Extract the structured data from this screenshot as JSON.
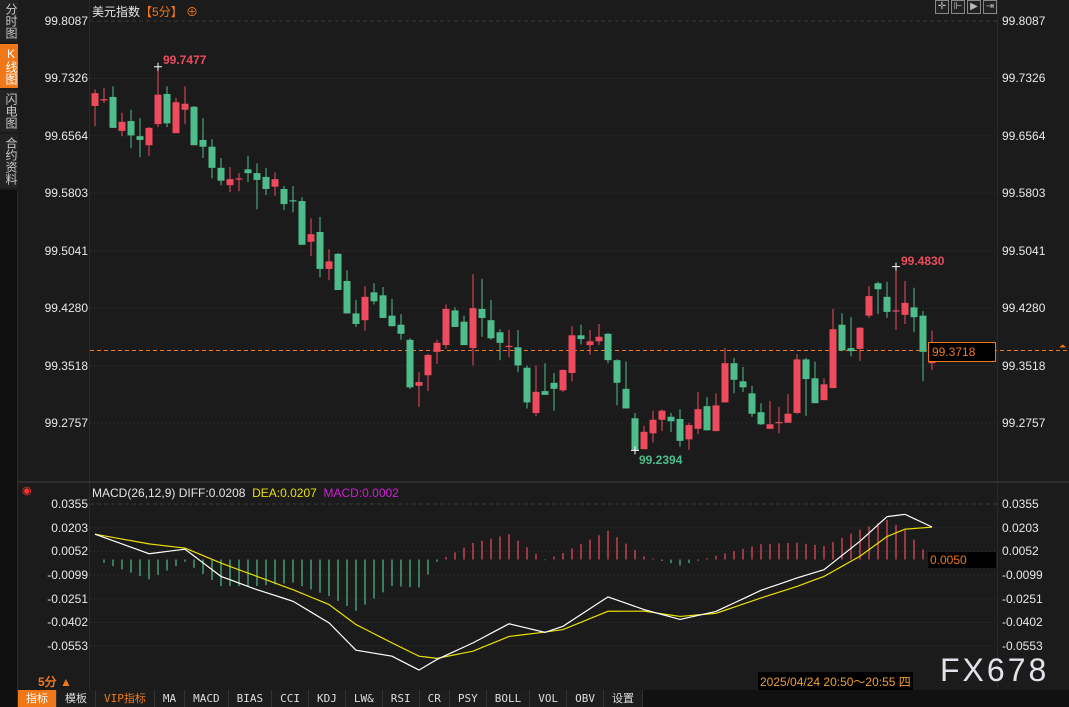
{
  "sidebar": {
    "items": [
      {
        "label": "分时图",
        "active": false
      },
      {
        "label": "K线图",
        "active": true
      },
      {
        "label": "闪电图",
        "active": false
      },
      {
        "label": "合约资料",
        "active": false
      }
    ]
  },
  "header": {
    "title": "美元指数",
    "period": "【5分】",
    "add_icon": "circle-plus-icon"
  },
  "toolbar_icons": [
    "crosshair-icon",
    "zoom-range-icon",
    "play-forward-icon",
    "move-right-icon"
  ],
  "colors": {
    "up": "#ee4b5e",
    "down": "#4fbc8b",
    "diff": "#ffffff",
    "dea": "#e8e000",
    "macd": "#d020d0",
    "accent": "#f07818"
  },
  "price_axis": {
    "labels": [
      "99.8087",
      "99.7326",
      "99.6564",
      "99.5803",
      "99.5041",
      "99.4280",
      "99.3518",
      "99.2757"
    ],
    "max": 99.8087,
    "min": 99.2757,
    "current": "99.3718"
  },
  "annotations": {
    "high": "99.7477",
    "low": "99.2394",
    "recent_high": "99.4830"
  },
  "candles": [
    [
      99.696,
      99.718,
      99.669,
      99.713
    ],
    [
      99.704,
      99.72,
      99.7,
      99.705
    ],
    [
      99.708,
      99.722,
      99.667,
      99.667
    ],
    [
      99.663,
      99.687,
      99.656,
      99.675
    ],
    [
      99.676,
      99.691,
      99.64,
      99.657
    ],
    [
      99.656,
      99.68,
      99.628,
      99.651
    ],
    [
      99.644,
      99.668,
      99.63,
      99.667
    ],
    [
      99.672,
      99.748,
      99.668,
      99.711
    ],
    [
      99.712,
      99.722,
      99.668,
      99.673
    ],
    [
      99.66,
      99.707,
      99.66,
      99.701
    ],
    [
      99.691,
      99.722,
      99.672,
      99.699
    ],
    [
      99.695,
      99.696,
      99.644,
      99.644
    ],
    [
      99.651,
      99.68,
      99.627,
      99.642
    ],
    [
      99.642,
      99.652,
      99.6,
      99.614
    ],
    [
      99.614,
      99.627,
      99.591,
      99.597
    ],
    [
      99.591,
      99.615,
      99.582,
      99.599
    ],
    [
      99.599,
      99.607,
      99.583,
      99.6
    ],
    [
      99.612,
      99.63,
      99.595,
      99.607
    ],
    [
      99.607,
      99.62,
      99.559,
      99.598
    ],
    [
      99.602,
      99.614,
      99.578,
      99.586
    ],
    [
      99.589,
      99.608,
      99.577,
      99.599
    ],
    [
      99.586,
      99.59,
      99.558,
      99.566
    ],
    [
      99.571,
      99.59,
      99.555,
      99.57
    ],
    [
      99.57,
      99.575,
      99.512,
      99.512
    ],
    [
      99.516,
      99.547,
      99.497,
      99.526
    ],
    [
      99.529,
      99.549,
      99.469,
      99.48
    ],
    [
      99.48,
      99.506,
      99.465,
      99.49
    ],
    [
      99.5,
      99.501,
      99.452,
      99.452
    ],
    [
      99.464,
      99.478,
      99.421,
      99.421
    ],
    [
      99.421,
      99.439,
      99.403,
      99.407
    ],
    [
      99.412,
      99.457,
      99.398,
      99.443
    ],
    [
      99.449,
      99.461,
      99.433,
      99.437
    ],
    [
      99.445,
      99.456,
      99.415,
      99.415
    ],
    [
      99.418,
      99.44,
      99.404,
      99.404
    ],
    [
      99.406,
      99.42,
      99.386,
      99.394
    ],
    [
      99.386,
      99.388,
      99.321,
      99.323
    ],
    [
      99.325,
      99.343,
      99.297,
      99.33
    ],
    [
      99.339,
      99.367,
      99.318,
      99.366
    ],
    [
      99.37,
      99.386,
      99.354,
      99.382
    ],
    [
      99.379,
      99.433,
      99.374,
      99.427
    ],
    [
      99.425,
      99.429,
      99.403,
      99.403
    ],
    [
      99.41,
      99.418,
      99.379,
      99.379
    ],
    [
      99.375,
      99.473,
      99.352,
      99.428
    ],
    [
      99.427,
      99.467,
      99.39,
      99.415
    ],
    [
      99.412,
      99.439,
      99.386,
      99.388
    ],
    [
      99.396,
      99.4,
      99.359,
      99.382
    ],
    [
      99.378,
      99.399,
      99.363,
      99.378
    ],
    [
      99.376,
      99.399,
      99.343,
      99.352
    ],
    [
      99.349,
      99.352,
      99.295,
      99.303
    ],
    [
      99.289,
      99.352,
      99.285,
      99.317
    ],
    [
      99.318,
      99.355,
      99.313,
      99.313
    ],
    [
      99.329,
      99.342,
      99.292,
      99.321
    ],
    [
      99.319,
      99.347,
      99.317,
      99.346
    ],
    [
      99.342,
      99.404,
      99.331,
      99.392
    ],
    [
      99.392,
      99.406,
      99.38,
      99.387
    ],
    [
      99.379,
      99.399,
      99.366,
      99.384
    ],
    [
      99.384,
      99.407,
      99.379,
      99.39
    ],
    [
      99.394,
      99.395,
      99.355,
      99.359
    ],
    [
      99.359,
      99.36,
      99.299,
      99.329
    ],
    [
      99.321,
      99.357,
      99.295,
      99.295
    ],
    [
      99.282,
      99.289,
      99.2394,
      99.24
    ],
    [
      99.241,
      99.272,
      99.241,
      99.264
    ],
    [
      99.262,
      99.292,
      99.25,
      99.28
    ],
    [
      99.28,
      99.294,
      99.265,
      99.292
    ],
    [
      99.284,
      99.289,
      99.264,
      99.278
    ],
    [
      99.281,
      99.294,
      99.244,
      99.252
    ],
    [
      99.254,
      99.276,
      99.24,
      99.273
    ],
    [
      99.268,
      99.317,
      99.261,
      99.294
    ],
    [
      99.298,
      99.31,
      99.266,
      99.266
    ],
    [
      99.265,
      99.315,
      99.265,
      99.299
    ],
    [
      99.303,
      99.375,
      99.303,
      99.355
    ],
    [
      99.355,
      99.362,
      99.315,
      99.333
    ],
    [
      99.331,
      99.35,
      99.317,
      99.323
    ],
    [
      99.315,
      99.325,
      99.284,
      99.288
    ],
    [
      99.29,
      99.302,
      99.273,
      99.274
    ],
    [
      99.268,
      99.305,
      99.268,
      99.274
    ],
    [
      99.277,
      99.297,
      99.262,
      99.277
    ],
    [
      99.276,
      99.314,
      99.276,
      99.288
    ],
    [
      99.289,
      99.367,
      99.288,
      99.36
    ],
    [
      99.36,
      99.362,
      99.285,
      99.334
    ],
    [
      99.335,
      99.357,
      99.302,
      99.302
    ],
    [
      99.306,
      99.335,
      99.306,
      99.327
    ],
    [
      99.322,
      99.427,
      99.322,
      99.4
    ],
    [
      99.406,
      99.421,
      99.371,
      99.372
    ],
    [
      99.375,
      99.416,
      99.364,
      99.371
    ],
    [
      99.374,
      99.403,
      99.358,
      99.402
    ],
    [
      99.418,
      99.457,
      99.415,
      99.444
    ],
    [
      99.461,
      99.463,
      99.42,
      99.453
    ],
    [
      99.443,
      99.463,
      99.415,
      99.423
    ],
    [
      99.424,
      99.483,
      99.399,
      99.425
    ],
    [
      99.419,
      99.464,
      99.407,
      99.435
    ],
    [
      99.429,
      99.455,
      99.396,
      99.416
    ],
    [
      99.418,
      99.424,
      99.331,
      99.37
    ],
    [
      99.355,
      99.398,
      99.346,
      99.3718
    ]
  ],
  "macd": {
    "label": "MACD(26,12,9)",
    "diff_label": "DIFF:0.0208",
    "dea_label": "DEA:0.0207",
    "macd_label": "MACD:0.0002",
    "axis_labels": [
      "0.0355",
      "0.0203",
      "0.0052",
      "-0.0099",
      "-0.0251",
      "-0.0402",
      "-0.0553"
    ],
    "max": 0.0355,
    "min": -0.0553,
    "current": "0.0050",
    "points": [
      {
        "i": 1,
        "diff": 0.0162,
        "dea": 0.0162
      },
      {
        "i": 7,
        "diff": 0.0037,
        "dea": 0.01
      },
      {
        "i": 11,
        "diff": 0.0066,
        "dea": 0.0073
      },
      {
        "i": 15,
        "diff": -0.0108,
        "dea": -0.0023
      },
      {
        "i": 19,
        "diff": -0.0193,
        "dea": -0.0108
      },
      {
        "i": 23,
        "diff": -0.0267,
        "dea": -0.0193
      },
      {
        "i": 27,
        "diff": -0.0405,
        "dea": -0.0288
      },
      {
        "i": 30,
        "diff": -0.058,
        "dea": -0.0416
      },
      {
        "i": 34,
        "diff": -0.0618,
        "dea": -0.0533
      },
      {
        "i": 37,
        "diff": -0.0707,
        "dea": -0.0618
      },
      {
        "i": 39,
        "diff": -0.0639,
        "dea": -0.0632
      },
      {
        "i": 43,
        "diff": -0.0533,
        "dea": -0.0586
      },
      {
        "i": 47,
        "diff": -0.0411,
        "dea": -0.0492
      },
      {
        "i": 51,
        "diff": -0.0466,
        "dea": -0.0464
      },
      {
        "i": 53,
        "diff": -0.0427,
        "dea": -0.0448
      },
      {
        "i": 58,
        "diff": -0.0239,
        "dea": -0.0331
      },
      {
        "i": 62,
        "diff": -0.032,
        "dea": -0.033
      },
      {
        "i": 66,
        "diff": -0.0383,
        "dea": -0.0364
      },
      {
        "i": 70,
        "diff": -0.0332,
        "dea": -0.0344
      },
      {
        "i": 75,
        "diff": -0.0197,
        "dea": -0.0246
      },
      {
        "i": 79,
        "diff": -0.0118,
        "dea": -0.0172
      },
      {
        "i": 82,
        "diff": -0.0065,
        "dea": -0.0108
      },
      {
        "i": 86,
        "diff": 0.0117,
        "dea": 0.0021
      },
      {
        "i": 89,
        "diff": 0.0274,
        "dea": 0.0147
      },
      {
        "i": 91,
        "diff": 0.0289,
        "dea": 0.0194
      },
      {
        "i": 94,
        "diff": 0.0208,
        "dea": 0.0207
      }
    ]
  },
  "period_selector": {
    "label": "5分 ▲"
  },
  "time_range": "2025/04/24 20:50～20:55 四",
  "watermark": "FX678",
  "bottom_tabs": [
    {
      "label": "指标",
      "active": true
    },
    {
      "label": "模板"
    },
    {
      "label": "VIP指标",
      "vip": true
    },
    {
      "label": "MA"
    },
    {
      "label": "MACD"
    },
    {
      "label": "BIAS"
    },
    {
      "label": "CCI"
    },
    {
      "label": "KDJ"
    },
    {
      "label": "LW&"
    },
    {
      "label": "RSI"
    },
    {
      "label": "CR"
    },
    {
      "label": "PSY"
    },
    {
      "label": "BOLL"
    },
    {
      "label": "VOL"
    },
    {
      "label": "OBV"
    },
    {
      "label": "设置"
    }
  ]
}
